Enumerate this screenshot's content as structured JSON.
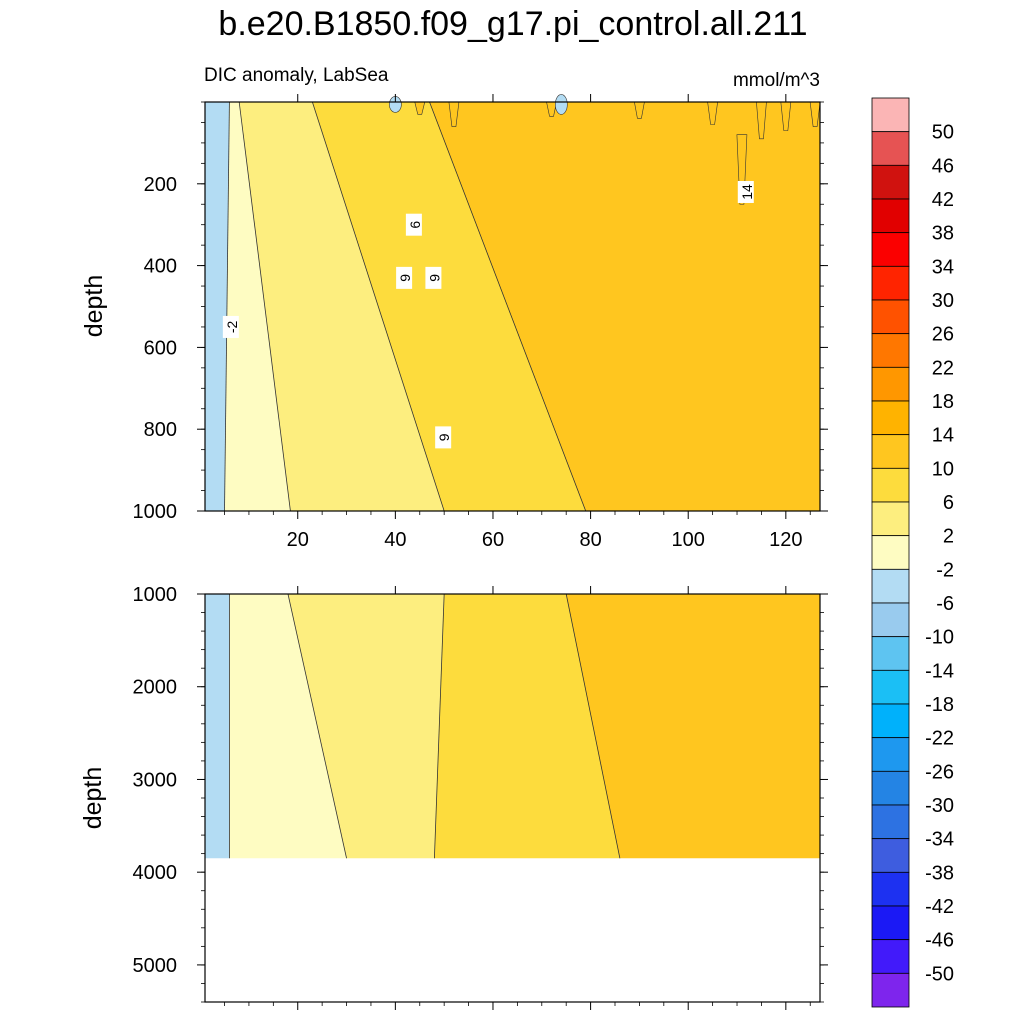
{
  "chart_data": {
    "type": "heatmap",
    "title": "b.e20.B1850.f09_g17.pi_control.all.211",
    "left_string": "DIC anomaly, LabSea",
    "right_string": "mmol/m^3",
    "colorbar": {
      "labels": [
        "50",
        "46",
        "42",
        "38",
        "34",
        "30",
        "26",
        "22",
        "18",
        "14",
        "10",
        "6",
        "2",
        "-2",
        "-6",
        "-10",
        "-14",
        "-18",
        "-22",
        "-26",
        "-30",
        "-34",
        "-38",
        "-42",
        "-46",
        "-50"
      ],
      "colors": [
        "#fbb5b5",
        "#e65353",
        "#d0120f",
        "#e10000",
        "#fb0000",
        "#ff2400",
        "#ff5200",
        "#ff7700",
        "#ff9700",
        "#ffb300",
        "#ffc61f",
        "#fddc3d",
        "#fdee7f",
        "#fefcc2",
        "#b3dcf3",
        "#99cbee",
        "#5ec4f1",
        "#1bbff5",
        "#00b1fb",
        "#1e98ef",
        "#2484e4",
        "#2d72e2",
        "#3e5ddf",
        "#1d31f1",
        "#1b19f5",
        "#421afa",
        "#7e25ed"
      ]
    },
    "panels": [
      {
        "name": "upper",
        "ylabel": "depth",
        "xlim": [
          1,
          127
        ],
        "ylim": [
          1000,
          0
        ],
        "x_ticks": [
          "20",
          "40",
          "60",
          "80",
          "100",
          "120"
        ],
        "y_ticks": [
          "200",
          "400",
          "600",
          "800",
          "1000"
        ],
        "contour_labels": [
          "-2",
          "9",
          "6",
          "9",
          "9",
          "14"
        ]
      },
      {
        "name": "lower",
        "ylabel": "depth",
        "xlim": [
          1,
          127
        ],
        "ylim": [
          5400,
          1000
        ],
        "x_ticks": [],
        "y_ticks": [
          "1000",
          "2000",
          "3000",
          "4000",
          "5000"
        ],
        "data_bottom_depth": 3850
      }
    ],
    "bands": [
      {
        "x0": 1,
        "x1": 7,
        "value": -4,
        "label": "-6 to -2"
      },
      {
        "x0": 7,
        "x1": 20,
        "value": 0,
        "label": "-2 to 2"
      },
      {
        "x0": 20,
        "x1": 50,
        "value": 4,
        "label": "2 to 6"
      },
      {
        "x0": 50,
        "x1": 79,
        "value": 8,
        "label": "6 to 10"
      },
      {
        "x0": 79,
        "x1": 127,
        "value": 12,
        "label": "10 to 14"
      }
    ]
  }
}
